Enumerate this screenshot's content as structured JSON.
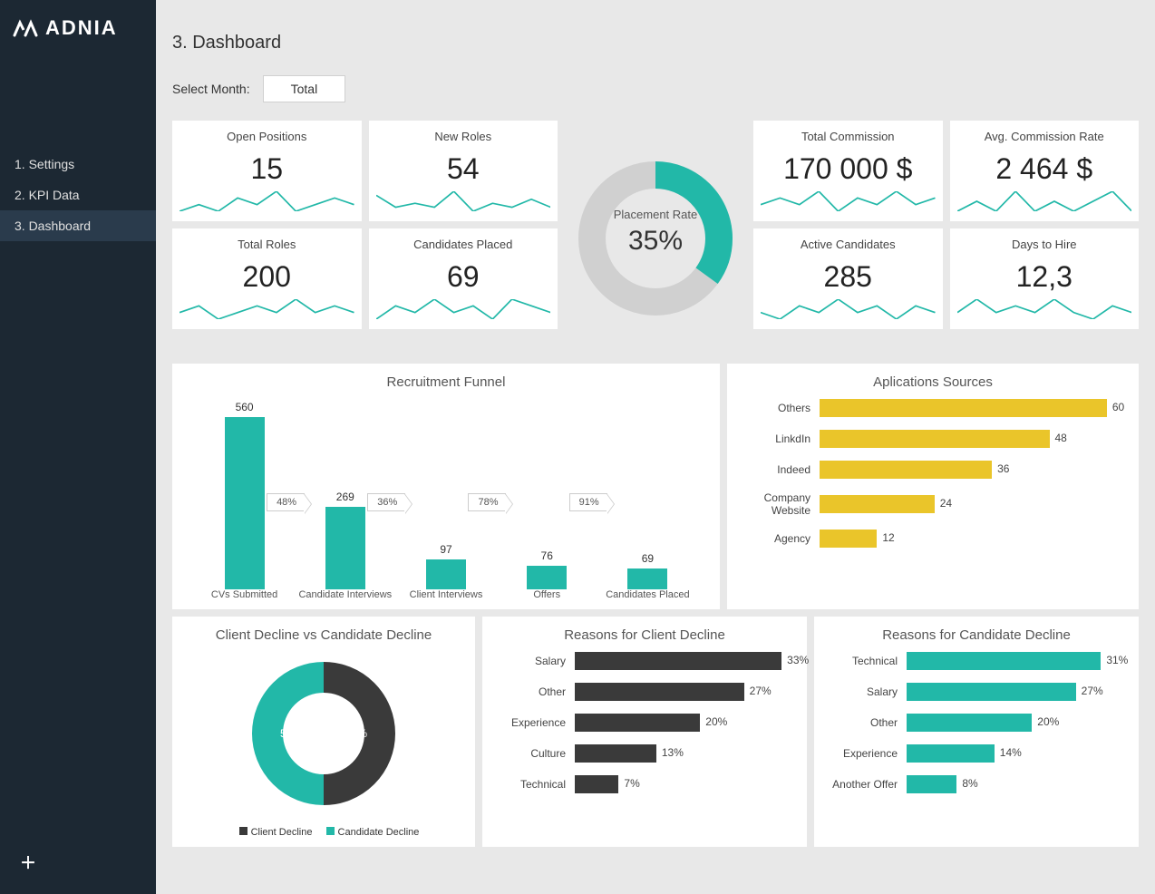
{
  "brand": "ADNIA",
  "page_title": "3. Dashboard",
  "selector_label": "Select Month:",
  "selector_value": "Total",
  "nav": [
    {
      "label": "1. Settings",
      "active": false
    },
    {
      "label": "2. KPI Data",
      "active": false
    },
    {
      "label": "3. Dashboard",
      "active": true
    }
  ],
  "colors": {
    "sidebar": "#1c2833",
    "teal": "#22b8a8",
    "yellow": "#eac52a",
    "dark": "#3a3a3a",
    "gauge_bg": "#d0d0d0",
    "card_bg": "#ffffff",
    "page_bg": "#e8e8e8"
  },
  "kpi": {
    "left": [
      [
        {
          "label": "Open Positions",
          "value": "15",
          "spark": [
            5,
            6,
            5,
            7,
            6,
            8,
            5,
            6,
            7,
            6
          ]
        },
        {
          "label": "New Roles",
          "value": "54",
          "spark": [
            8,
            5,
            6,
            5,
            9,
            4,
            6,
            5,
            7,
            5
          ]
        }
      ],
      [
        {
          "label": "Total Roles",
          "value": "200",
          "spark": [
            5,
            6,
            4,
            5,
            6,
            5,
            7,
            5,
            6,
            5
          ]
        },
        {
          "label": "Candidates Placed",
          "value": "69",
          "spark": [
            4,
            6,
            5,
            7,
            5,
            6,
            4,
            7,
            6,
            5
          ]
        }
      ]
    ],
    "right": [
      [
        {
          "label": "Total Commission",
          "value": "170 000 $",
          "spark": [
            5,
            6,
            5,
            7,
            4,
            6,
            5,
            7,
            5,
            6
          ]
        },
        {
          "label": "Avg. Commission Rate",
          "value": "2 464 $",
          "spark": [
            5,
            6,
            5,
            7,
            5,
            6,
            5,
            6,
            7,
            5
          ]
        }
      ],
      [
        {
          "label": "Active Candidates",
          "value": "285",
          "spark": [
            5,
            4,
            6,
            5,
            7,
            5,
            6,
            4,
            6,
            5
          ]
        },
        {
          "label": "Days to Hire",
          "value": "12,3",
          "spark": [
            5,
            7,
            5,
            6,
            5,
            7,
            5,
            4,
            6,
            5
          ]
        }
      ]
    ]
  },
  "gauge": {
    "label": "Placement Rate",
    "value_text": "35%",
    "percent": 35
  },
  "funnel": {
    "title": "Recruitment Funnel",
    "max": 560,
    "bars": [
      {
        "label": "CVs Submitted",
        "value": 560
      },
      {
        "label": "Candidate Interviews",
        "value": 269
      },
      {
        "label": "Client Interviews",
        "value": 97
      },
      {
        "label": "Offers",
        "value": 76
      },
      {
        "label": "Candidates Placed",
        "value": 69
      }
    ],
    "arrows": [
      "48%",
      "36%",
      "78%",
      "91%"
    ]
  },
  "sources": {
    "title": "Aplications Sources",
    "max": 64,
    "rows": [
      {
        "label": "Others",
        "value": 60
      },
      {
        "label": "LinkdIn",
        "value": 48
      },
      {
        "label": "Indeed",
        "value": 36
      },
      {
        "label": "Company Website",
        "value": 24
      },
      {
        "label": "Agency",
        "value": 12
      }
    ]
  },
  "decline_mix": {
    "title": "Client Decline  vs Candidate Decline",
    "client_pct": 50,
    "candidate_pct": 50,
    "legend_client": "Client Decline",
    "legend_candidate": "Candidate Decline"
  },
  "client_reasons": {
    "title": "Reasons for Client Decline",
    "max": 35,
    "rows": [
      {
        "label": "Salary",
        "value": 33
      },
      {
        "label": "Other",
        "value": 27
      },
      {
        "label": "Experience",
        "value": 20
      },
      {
        "label": "Culture",
        "value": 13
      },
      {
        "label": "Technical",
        "value": 7
      }
    ]
  },
  "candidate_reasons": {
    "title": "Reasons for Candidate Decline",
    "max": 35,
    "rows": [
      {
        "label": "Technical",
        "value": 31
      },
      {
        "label": "Salary",
        "value": 27
      },
      {
        "label": "Other",
        "value": 20
      },
      {
        "label": "Experience",
        "value": 14
      },
      {
        "label": "Another Offer",
        "value": 8
      }
    ]
  }
}
